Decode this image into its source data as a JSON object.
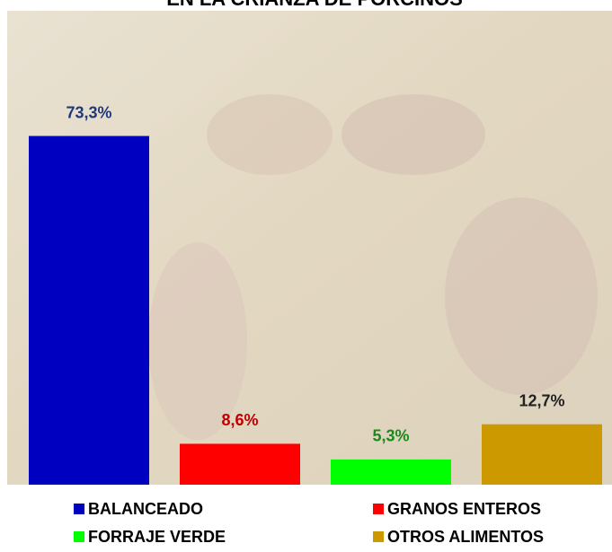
{
  "chart_data": {
    "type": "bar",
    "title": "EN LA CRIANZA DE PORCINOS",
    "categories": [
      "BALANCEADO",
      "GRANOS ENTEROS",
      "FORRAJE VERDE",
      "OTROS ALIMENTOS"
    ],
    "values": [
      73.3,
      8.6,
      5.3,
      12.7
    ],
    "value_labels": [
      "73,3%",
      "8,6%",
      "5,3%",
      "12,7%"
    ],
    "colors": [
      "#0000c0",
      "#ff0000",
      "#00ff00",
      "#cc9900"
    ],
    "label_colors": [
      "#1f3a7a",
      "#c00000",
      "#1a8a1a",
      "#222222"
    ],
    "ylim": [
      0,
      100
    ]
  }
}
